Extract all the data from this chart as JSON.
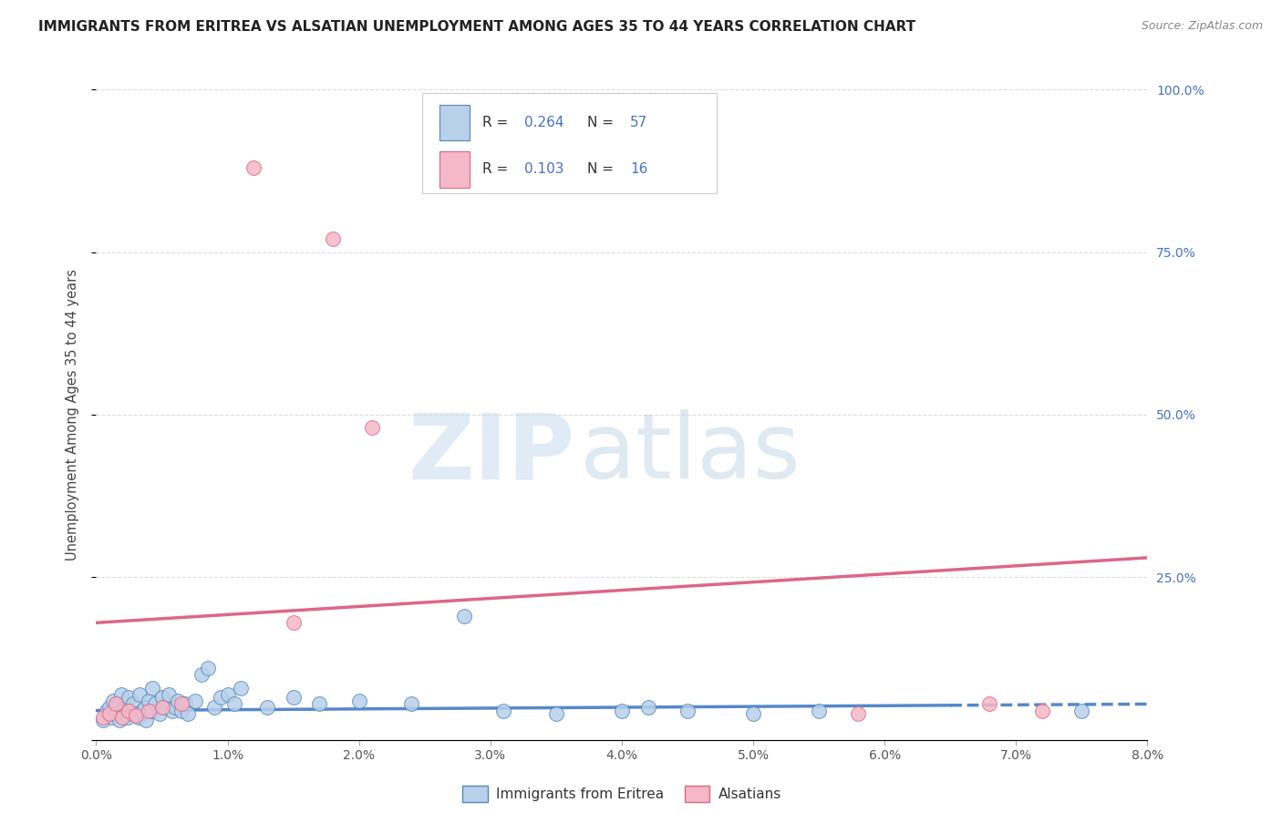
{
  "title": "IMMIGRANTS FROM ERITREA VS ALSATIAN UNEMPLOYMENT AMONG AGES 35 TO 44 YEARS CORRELATION CHART",
  "source": "Source: ZipAtlas.com",
  "ylabel": "Unemployment Among Ages 35 to 44 years",
  "xlim": [
    0.0,
    8.0
  ],
  "ylim": [
    0.0,
    100.0
  ],
  "grid_color": "#dddddd",
  "background_color": "#ffffff",
  "series1_label": "Immigrants from Eritrea",
  "series2_label": "Alsatians",
  "series1_color": "#b8d0ea",
  "series2_color": "#f5b8c8",
  "series1_edge": "#5588bb",
  "series2_edge": "#dd6688",
  "trendline1_color": "#5588cc",
  "trendline2_color": "#dd6688",
  "legend_r1_val": "0.264",
  "legend_n1_val": "57",
  "legend_r2_val": "0.103",
  "legend_n2_val": "16",
  "text_color": "#333333",
  "blue_color": "#4472c4",
  "title_color": "#222222",
  "source_color": "#888888",
  "blue_scatter_x": [
    0.05,
    0.08,
    0.1,
    0.12,
    0.13,
    0.15,
    0.17,
    0.18,
    0.19,
    0.2,
    0.22,
    0.24,
    0.25,
    0.27,
    0.28,
    0.3,
    0.32,
    0.33,
    0.35,
    0.37,
    0.38,
    0.4,
    0.42,
    0.43,
    0.45,
    0.48,
    0.5,
    0.52,
    0.55,
    0.58,
    0.6,
    0.62,
    0.65,
    0.68,
    0.7,
    0.75,
    0.8,
    0.85,
    0.9,
    0.95,
    1.0,
    1.05,
    1.1,
    1.3,
    1.5,
    1.7,
    2.0,
    2.4,
    2.8,
    3.1,
    3.5,
    4.0,
    4.2,
    4.5,
    5.0,
    5.5,
    7.5
  ],
  "blue_scatter_y": [
    3.0,
    4.5,
    5.0,
    3.5,
    6.0,
    4.0,
    5.5,
    3.0,
    7.0,
    4.5,
    5.0,
    3.5,
    6.5,
    4.0,
    5.5,
    4.0,
    3.5,
    7.0,
    4.5,
    5.0,
    3.0,
    6.0,
    4.5,
    8.0,
    5.5,
    4.0,
    6.5,
    5.0,
    7.0,
    4.5,
    5.0,
    6.0,
    4.5,
    5.5,
    4.0,
    6.0,
    10.0,
    11.0,
    5.0,
    6.5,
    7.0,
    5.5,
    8.0,
    5.0,
    6.5,
    5.5,
    6.0,
    5.5,
    5.0,
    4.5,
    4.0,
    4.5,
    5.0,
    4.5,
    4.0,
    4.5,
    4.5
  ],
  "blue_scatter_y_override": {
    "48": 19.0
  },
  "pink_scatter_x": [
    0.05,
    0.1,
    0.15,
    0.2,
    0.25,
    0.3,
    0.4,
    0.5,
    0.65,
    1.2,
    1.5,
    1.8,
    2.1,
    5.8,
    6.8,
    7.2
  ],
  "pink_scatter_y": [
    3.5,
    4.0,
    5.5,
    3.5,
    4.5,
    3.8,
    4.5,
    5.0,
    5.5,
    88.0,
    18.0,
    77.0,
    48.0,
    4.0,
    5.5,
    4.5
  ],
  "pink_trendline_y0": 18.0,
  "pink_trendline_y1": 28.0,
  "blue_trendline_y0": 4.5,
  "blue_trendline_y1": 5.5
}
